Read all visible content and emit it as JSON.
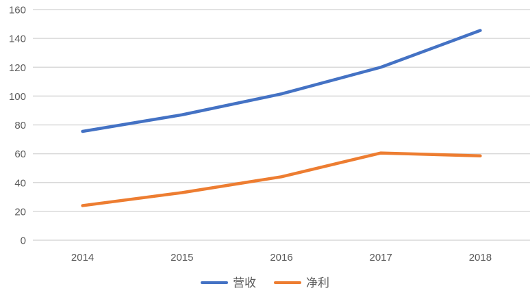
{
  "chart_data": {
    "type": "line",
    "title": "",
    "xlabel": "",
    "ylabel": "",
    "categories": [
      "2014",
      "2015",
      "2016",
      "2017",
      "2018"
    ],
    "series": [
      {
        "name": "营收",
        "color": "#4472C4",
        "values": [
          75.5,
          87,
          101.5,
          120,
          145.5
        ]
      },
      {
        "name": "净利",
        "color": "#ED7D31",
        "values": [
          24,
          33,
          44,
          60.5,
          58.5
        ]
      }
    ],
    "ylim": [
      0,
      160
    ],
    "yticks": [
      0,
      20,
      40,
      60,
      80,
      100,
      120,
      140,
      160
    ],
    "grid": true,
    "legend_position": "bottom"
  },
  "colors": {
    "gridline": "#D9D9D9",
    "axis_line": "#D9D9D9",
    "tick_text": "#595959",
    "legend_text": "#595959",
    "background": "#FFFFFF"
  }
}
